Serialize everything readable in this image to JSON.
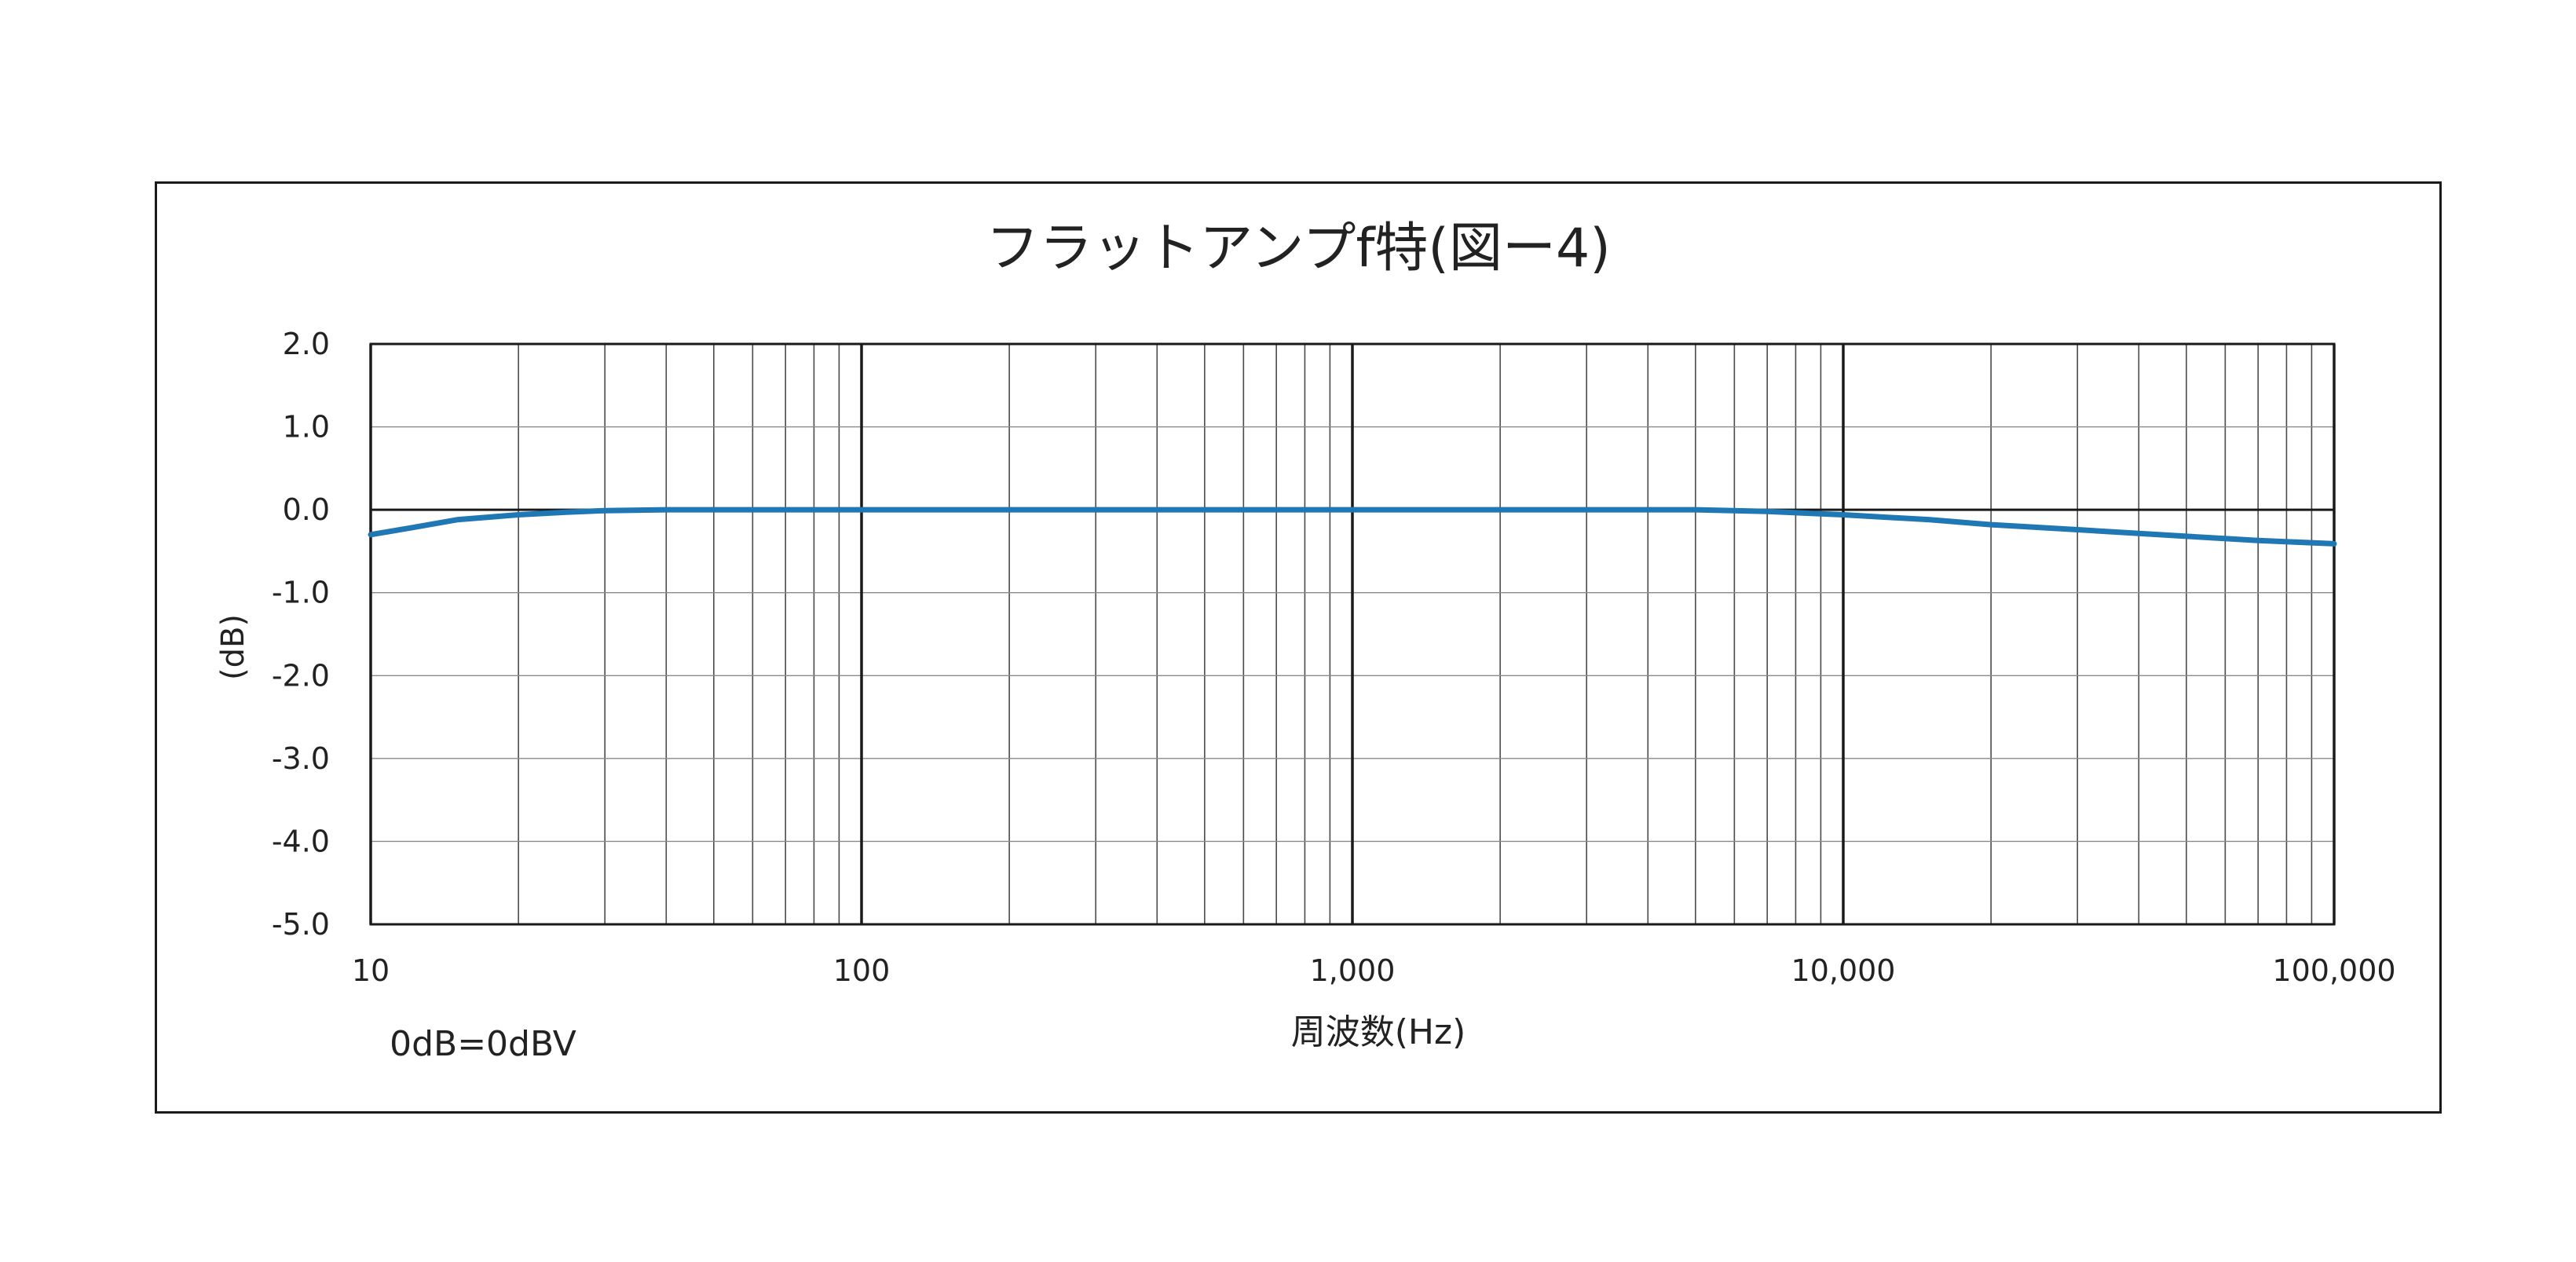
{
  "chart_data": {
    "type": "line",
    "title": "フラットアンプf特(図ー4)",
    "xlabel": "周波数(Hz)",
    "ylabel": "(dB)",
    "note": "0dB=0dBV",
    "x_scale": "log",
    "xlim": [
      10,
      100000
    ],
    "ylim": [
      -5.0,
      2.0
    ],
    "x_ticks": [
      10,
      100,
      1000,
      10000,
      100000
    ],
    "x_tick_labels": [
      "10",
      "100",
      "1,000",
      "10,000",
      "100,000"
    ],
    "y_ticks": [
      2.0,
      1.0,
      0.0,
      -1.0,
      -2.0,
      -3.0,
      -4.0,
      -5.0
    ],
    "y_tick_labels": [
      "2.0",
      "1.0",
      "0.0",
      "-1.0",
      "-2.0",
      "-3.0",
      "-4.0",
      "-5.0"
    ],
    "grid": true,
    "series": [
      {
        "color": "#1f77b4",
        "x": [
          10,
          12,
          15,
          20,
          25,
          30,
          40,
          50,
          100,
          300,
          1000,
          3000,
          5000,
          7000,
          10000,
          15000,
          20000,
          30000,
          50000,
          70000,
          100000
        ],
        "y": [
          -0.3,
          -0.22,
          -0.12,
          -0.06,
          -0.03,
          -0.01,
          0.0,
          0.0,
          0.0,
          0.0,
          0.0,
          0.0,
          0.0,
          -0.02,
          -0.06,
          -0.12,
          -0.18,
          -0.24,
          -0.32,
          -0.37,
          -0.41
        ]
      }
    ]
  }
}
